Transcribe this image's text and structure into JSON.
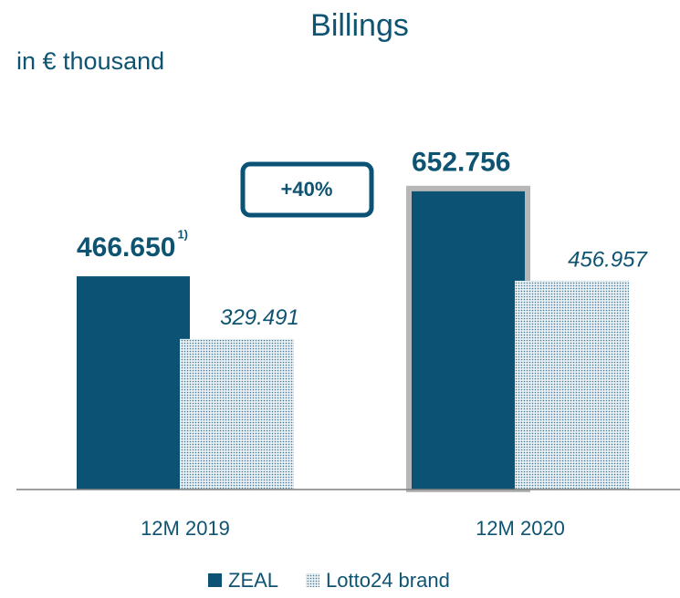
{
  "chart_data": {
    "type": "bar",
    "title": "Billings",
    "subtitle": "in € thousand",
    "categories": [
      "12M 2019",
      "12M 2020"
    ],
    "series": [
      {
        "name": "ZEAL",
        "color": "#0b5275",
        "pattern": "solid",
        "values": [
          466650,
          652756
        ],
        "value_labels": [
          "466.650",
          "652.756"
        ]
      },
      {
        "name": "Lotto24 brand",
        "color": "#0b5275",
        "pattern": "dots",
        "values": [
          329491,
          456957
        ],
        "value_labels": [
          "329.491",
          "456.957"
        ]
      }
    ],
    "ylim": [
      0,
      800000
    ],
    "annotations": [
      "+40%",
      "1)"
    ],
    "legend": "bottom"
  }
}
